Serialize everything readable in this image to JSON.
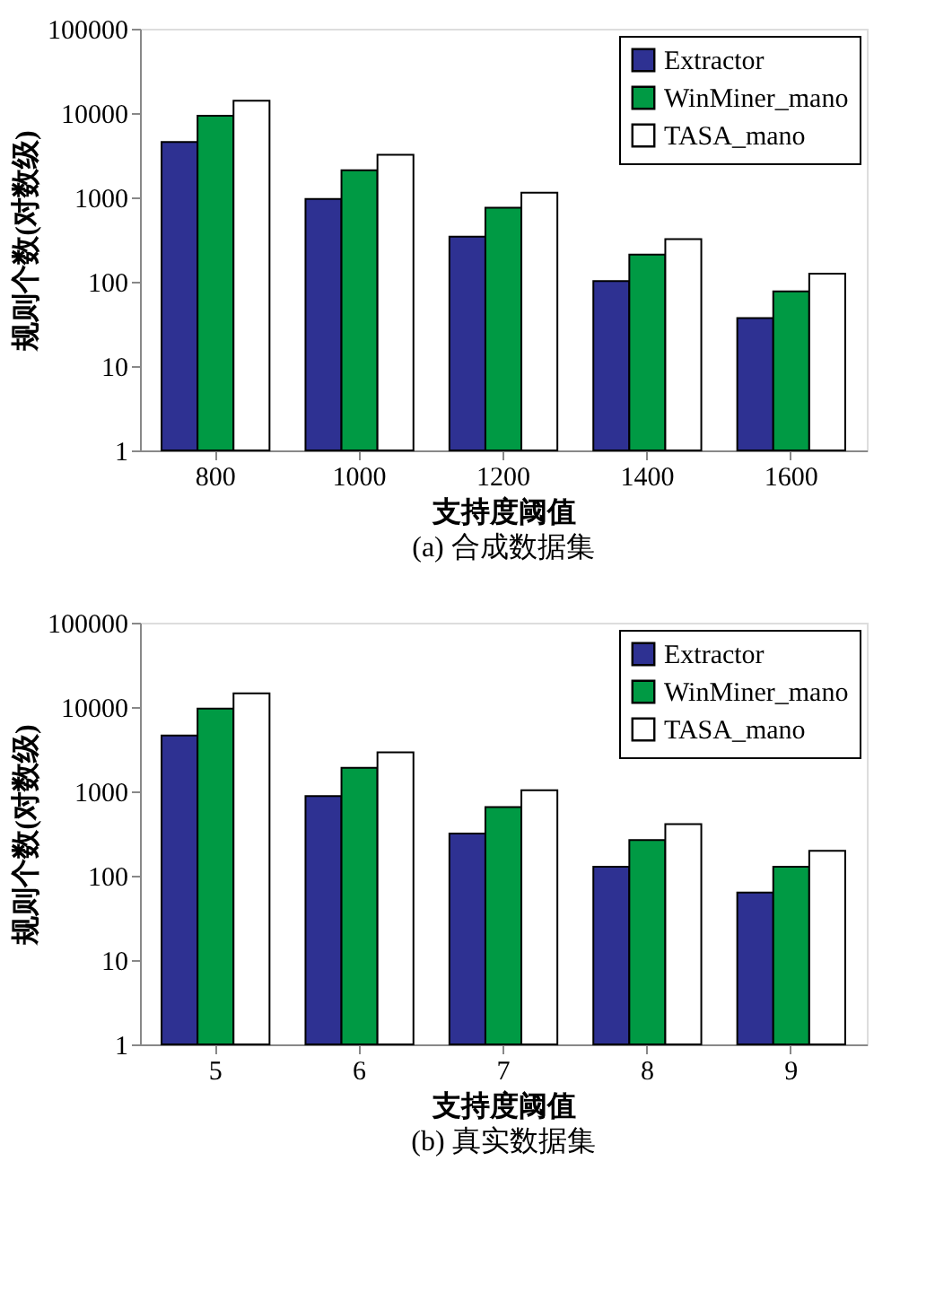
{
  "chart_data": [
    {
      "type": "bar",
      "title": "(a) 合成数据集",
      "xlabel": "支持度阈值",
      "ylabel": "规则个数(对数级)",
      "categories": [
        "800",
        "1000",
        "1200",
        "1400",
        "1600"
      ],
      "log": true,
      "ylim": [
        1,
        100000
      ],
      "yticks": [
        1,
        10,
        100,
        1000,
        10000,
        100000
      ],
      "grid": false,
      "legend": "top right",
      "series": [
        {
          "name": "Extractor",
          "color": "#2e3192",
          "values": [
            4550,
            960,
            343,
            102,
            37
          ]
        },
        {
          "name": "WinMiner_mano",
          "color": "#009a44",
          "values": [
            9300,
            2100,
            755,
            210,
            77
          ]
        },
        {
          "name": "TASA_mano",
          "color": "#ffffff",
          "values": [
            14000,
            3200,
            1140,
            320,
            125
          ]
        }
      ]
    },
    {
      "type": "bar",
      "title": "(b) 真实数据集",
      "xlabel": "支持度阈值",
      "ylabel": "规则个数(对数级)",
      "categories": [
        "5",
        "6",
        "7",
        "8",
        "9"
      ],
      "log": true,
      "ylim": [
        1,
        100000
      ],
      "yticks": [
        1,
        10,
        100,
        1000,
        10000,
        100000
      ],
      "grid": false,
      "legend": "top right",
      "series": [
        {
          "name": "Extractor",
          "color": "#2e3192",
          "values": [
            4600,
            880,
            316,
            128,
            63
          ]
        },
        {
          "name": "WinMiner_mano",
          "color": "#009a44",
          "values": [
            9600,
            1900,
            650,
            265,
            128
          ]
        },
        {
          "name": "TASA_mano",
          "color": "#ffffff",
          "values": [
            14500,
            2900,
            1030,
            410,
            197
          ]
        }
      ]
    }
  ]
}
